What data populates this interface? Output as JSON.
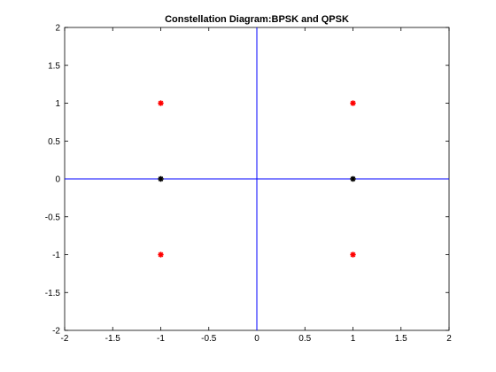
{
  "chart_data": {
    "type": "scatter",
    "title": "Constellation Diagram:BPSK and QPSK",
    "xlabel": "",
    "ylabel": "",
    "xlim": [
      -2,
      2
    ],
    "ylim": [
      -2,
      2
    ],
    "x_ticks": [
      "-2",
      "-1.5",
      "-1",
      "-0.5",
      "0",
      "0.5",
      "1",
      "1.5",
      "2"
    ],
    "y_ticks": [
      "2",
      "1.5",
      "1",
      "0.5",
      "0",
      "-0.5",
      "-1",
      "-1.5",
      "-2"
    ],
    "grid": false,
    "reference_lines": {
      "x": 0,
      "y": 0,
      "color": "#0000ff"
    },
    "series": [
      {
        "color": "#ff0000",
        "marker": "*",
        "points": [
          [
            -1,
            1
          ],
          [
            1,
            1
          ],
          [
            -1,
            -1
          ],
          [
            1,
            -1
          ]
        ]
      },
      {
        "color": "#000000",
        "marker": "*",
        "points": [
          [
            -1,
            0
          ],
          [
            1,
            0
          ]
        ]
      }
    ]
  }
}
